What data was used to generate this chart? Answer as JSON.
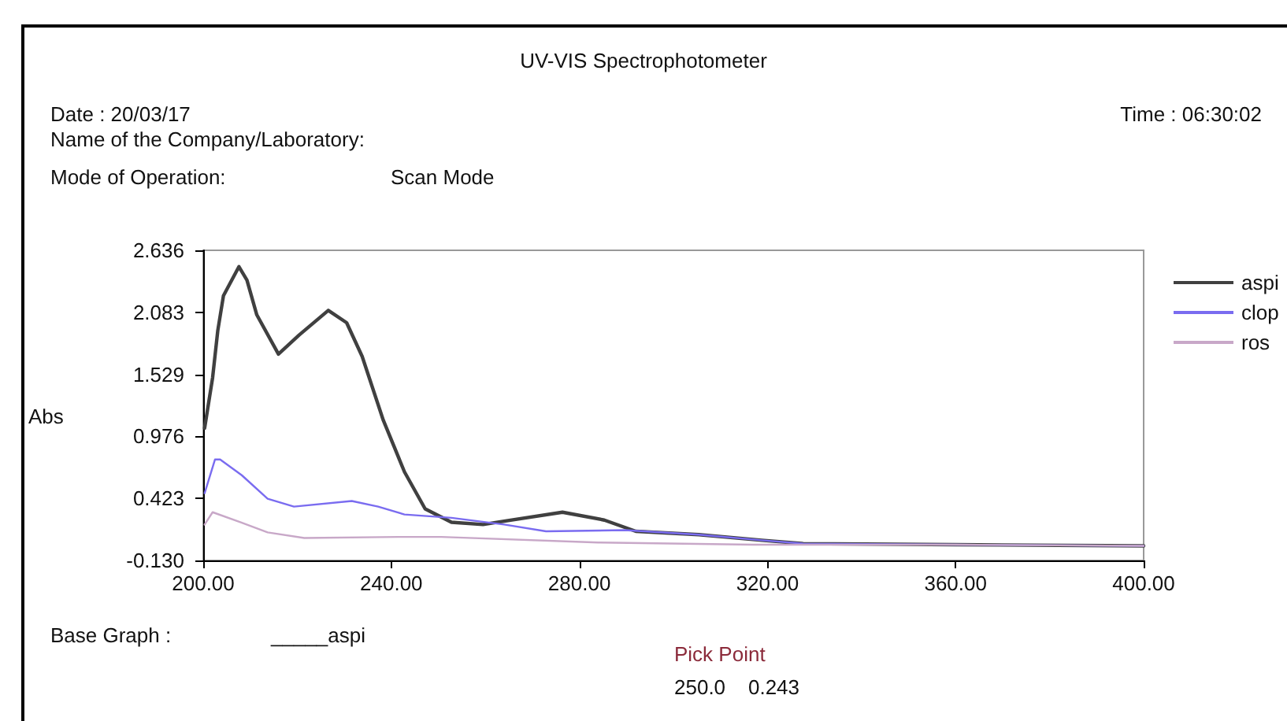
{
  "chart_data": {
    "type": "line",
    "title": "UV-VIS Spectrophotometer",
    "ylabel": "Abs",
    "annotations": [
      "Date : 20/03/17",
      "Name of the Company/Laboratory:",
      "Time : 06:30:02",
      "Mode of Operation:",
      "Scan Mode",
      "Base Graph :",
      "_____aspi",
      "Pick Point",
      "250.0    0.243"
    ],
    "xlim": [
      200,
      400
    ],
    "xticks": [
      {
        "value": 200,
        "label": "200.00"
      },
      {
        "value": 240,
        "label": "240.00"
      },
      {
        "value": 280,
        "label": "280.00"
      },
      {
        "value": 320,
        "label": "320.00"
      },
      {
        "value": 360,
        "label": "360.00"
      },
      {
        "value": 400,
        "label": "400.00"
      }
    ],
    "ylim": [
      -0.13,
      2.636
    ],
    "yticks": [
      {
        "value": -0.13,
        "label": "-0.130"
      },
      0.423,
      0.976,
      1.529,
      2.083,
      2.636
    ],
    "grid": false,
    "legend": "right",
    "marker": "none",
    "line_style": "solid",
    "series": [
      {
        "name": "aspi",
        "color": "#404040",
        "x": [
          200.3,
          202,
          203.1,
          204.3,
          207.6,
          209.3,
          211.4,
          216,
          220.4,
          226.6,
          230.5,
          233.8,
          238.3,
          242.8,
          247.2,
          252.8,
          259.5,
          264,
          276.4,
          285.3,
          292,
          305.4,
          318.8,
          327.6,
          360,
          400
        ],
        "values": [
          1.05,
          1.5,
          1.92,
          2.23,
          2.49,
          2.37,
          2.06,
          1.71,
          1.88,
          2.1,
          1.99,
          1.69,
          1.12,
          0.66,
          0.33,
          0.21,
          0.19,
          0.22,
          0.3,
          0.23,
          0.13,
          0.1,
          0.05,
          0.02,
          0.01,
          0
        ]
      },
      {
        "name": "clop",
        "color": "#7a6cf0",
        "x": [
          200.3,
          202.5,
          203.6,
          208.2,
          213.7,
          219.3,
          231.6,
          237.2,
          242.8,
          252.8,
          264,
          272.9,
          289.7,
          305.4,
          318.8,
          327.6,
          360,
          400
        ],
        "values": [
          0.47,
          0.77,
          0.77,
          0.63,
          0.42,
          0.35,
          0.4,
          0.35,
          0.28,
          0.25,
          0.19,
          0.13,
          0.14,
          0.1,
          0.05,
          0.02,
          0.01,
          0
        ]
      },
      {
        "name": "ros",
        "color": "#c8a8c8",
        "x": [
          200.3,
          202,
          208,
          213.7,
          221.5,
          241.6,
          250.6,
          284,
          317,
          360,
          400
        ],
        "values": [
          0.19,
          0.3,
          0.21,
          0.12,
          0.07,
          0.08,
          0.08,
          0.03,
          0.01,
          0.01,
          0
        ]
      }
    ]
  }
}
